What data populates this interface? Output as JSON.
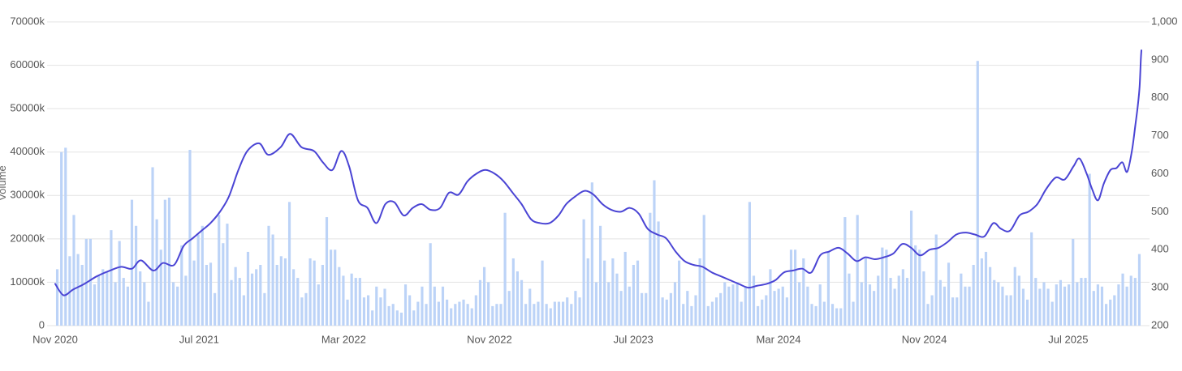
{
  "chart_data": {
    "type": "bar+line",
    "title": "",
    "y_left": {
      "label": "Volume",
      "range": [
        0,
        70000
      ],
      "ticks": [
        0,
        10000,
        20000,
        30000,
        40000,
        50000,
        60000,
        70000
      ],
      "tick_labels": [
        "0",
        "10000k",
        "20000k",
        "30000k",
        "40000k",
        "50000k",
        "60000k",
        "70000k"
      ]
    },
    "y_right": {
      "label": "",
      "range": [
        200,
        1000
      ],
      "ticks": [
        200,
        300,
        400,
        500,
        600,
        700,
        800,
        900,
        1000
      ],
      "tick_labels": [
        "200",
        "300",
        "400",
        "500",
        "600",
        "700",
        "800",
        "900",
        "1,000"
      ]
    },
    "x_axis": {
      "start": "2020-11-01",
      "end": "2025-11-01",
      "tick_labels": [
        "Nov 2020",
        "Jul 2021",
        "Mar 2022",
        "Nov 2022",
        "Jul 2023",
        "Mar 2024",
        "Nov 2024",
        "Jul 2025"
      ]
    },
    "grid": true,
    "colors": {
      "bar": "#bcd3f7",
      "line": "#4a44d4"
    },
    "series": [
      {
        "type": "bar",
        "axis": "left",
        "values": [
          13000,
          40000,
          41000,
          16000,
          25500,
          16500,
          14000,
          20000,
          20000,
          9500,
          11500,
          13000,
          12500,
          22000,
          10000,
          19500,
          11000,
          9000,
          29000,
          23000,
          12500,
          10000,
          5500,
          36500,
          24500,
          17500,
          29000,
          29500,
          10000,
          9000,
          18500,
          11500,
          40500,
          15000,
          21000,
          23000,
          14000,
          14500,
          7500,
          25500,
          19000,
          23500,
          10500,
          13500,
          11000,
          7000,
          17000,
          12000,
          13000,
          14000,
          7500,
          23000,
          21000,
          14000,
          16000,
          15500,
          28500,
          13000,
          11000,
          6500,
          7500,
          15500,
          15000,
          9500,
          14000,
          25000,
          17500,
          17500,
          13500,
          11500,
          6000,
          12000,
          11000,
          11000,
          6500,
          7000,
          3500,
          9000,
          6500,
          8500,
          4500,
          5000,
          3500,
          3000,
          9500,
          7000,
          3500,
          5500,
          9000,
          5000,
          19000,
          9000,
          5500,
          9000,
          6000,
          4000,
          5000,
          5500,
          6000,
          5000,
          4000,
          7000,
          10500,
          13500,
          10000,
          4500,
          5000,
          5000,
          26000,
          8000,
          15500,
          12500,
          10500,
          5000,
          8500,
          5000,
          5500,
          15000,
          5000,
          4000,
          5500,
          5500,
          5500,
          6500,
          5000,
          8000,
          6500,
          24500,
          15500,
          33000,
          10000,
          23000,
          15000,
          10000,
          15500,
          12000,
          8000,
          17000,
          9000,
          14000,
          15000,
          7500,
          7500,
          26000,
          33500,
          24000,
          6500,
          6000,
          7500,
          10000,
          15000,
          5000,
          8000,
          4500,
          7000,
          15500,
          25500,
          4500,
          5500,
          6500,
          7500,
          10000,
          9000,
          9500,
          10000,
          5500,
          9000,
          28500,
          11500,
          4500,
          6000,
          7000,
          13000,
          8000,
          8500,
          9000,
          6500,
          17500,
          17500,
          10000,
          15500,
          9000,
          5000,
          4500,
          9500,
          5500,
          17000,
          5000,
          4000,
          4000,
          25000,
          12000,
          5500,
          25500,
          10000,
          15500,
          9500,
          8000,
          11500,
          18000,
          17500,
          11000,
          8500,
          11500,
          13000,
          11000,
          26500,
          18500,
          17500,
          12500,
          5000,
          7000,
          21000,
          10500,
          9000,
          14500,
          6500,
          6500,
          12000,
          9000,
          9000,
          14000,
          61000,
          15500,
          17000,
          13500,
          10500,
          10000,
          9000,
          7000,
          7000,
          13500,
          11500,
          8500,
          6000,
          21500,
          11000,
          8500,
          10000,
          8500,
          5500,
          9500,
          10500,
          9000,
          9500,
          20000,
          10000,
          11000,
          11000,
          35000,
          8000,
          9500,
          9000,
          5000,
          6000,
          7000,
          9500,
          12000,
          9000,
          11500,
          11000,
          16500
        ]
      },
      {
        "type": "line",
        "axis": "right",
        "points": [
          [
            "2020-11-01",
            310
          ],
          [
            "2020-11-15",
            280
          ],
          [
            "2020-12-01",
            295
          ],
          [
            "2020-12-20",
            310
          ],
          [
            "2021-01-10",
            330
          ],
          [
            "2021-02-01",
            345
          ],
          [
            "2021-02-20",
            355
          ],
          [
            "2021-03-10",
            350
          ],
          [
            "2021-03-25",
            372
          ],
          [
            "2021-04-15",
            345
          ],
          [
            "2021-05-01",
            365
          ],
          [
            "2021-05-20",
            360
          ],
          [
            "2021-06-05",
            410
          ],
          [
            "2021-06-20",
            430
          ],
          [
            "2021-07-05",
            450
          ],
          [
            "2021-07-20",
            470
          ],
          [
            "2021-08-05",
            500
          ],
          [
            "2021-08-20",
            540
          ],
          [
            "2021-09-05",
            610
          ],
          [
            "2021-09-20",
            660
          ],
          [
            "2021-10-10",
            680
          ],
          [
            "2021-10-25",
            650
          ],
          [
            "2021-11-15",
            670
          ],
          [
            "2021-12-01",
            705
          ],
          [
            "2021-12-20",
            670
          ],
          [
            "2022-01-10",
            660
          ],
          [
            "2022-01-25",
            630
          ],
          [
            "2022-02-10",
            610
          ],
          [
            "2022-02-25",
            660
          ],
          [
            "2022-03-10",
            620
          ],
          [
            "2022-03-25",
            530
          ],
          [
            "2022-04-10",
            510
          ],
          [
            "2022-04-25",
            470
          ],
          [
            "2022-05-10",
            520
          ],
          [
            "2022-05-25",
            525
          ],
          [
            "2022-06-10",
            490
          ],
          [
            "2022-06-25",
            510
          ],
          [
            "2022-07-10",
            520
          ],
          [
            "2022-07-25",
            505
          ],
          [
            "2022-08-10",
            510
          ],
          [
            "2022-08-25",
            550
          ],
          [
            "2022-09-10",
            545
          ],
          [
            "2022-09-25",
            580
          ],
          [
            "2022-10-10",
            600
          ],
          [
            "2022-10-25",
            610
          ],
          [
            "2022-11-10",
            600
          ],
          [
            "2022-11-25",
            580
          ],
          [
            "2022-12-10",
            550
          ],
          [
            "2022-12-25",
            520
          ],
          [
            "2023-01-10",
            480
          ],
          [
            "2023-01-25",
            470
          ],
          [
            "2023-02-10",
            470
          ],
          [
            "2023-02-25",
            490
          ],
          [
            "2023-03-10",
            520
          ],
          [
            "2023-03-25",
            540
          ],
          [
            "2023-04-10",
            555
          ],
          [
            "2023-04-25",
            545
          ],
          [
            "2023-05-10",
            520
          ],
          [
            "2023-05-25",
            505
          ],
          [
            "2023-06-10",
            500
          ],
          [
            "2023-06-25",
            510
          ],
          [
            "2023-07-10",
            495
          ],
          [
            "2023-07-25",
            455
          ],
          [
            "2023-08-10",
            440
          ],
          [
            "2023-08-25",
            430
          ],
          [
            "2023-09-10",
            395
          ],
          [
            "2023-09-25",
            370
          ],
          [
            "2023-10-10",
            360
          ],
          [
            "2023-10-25",
            355
          ],
          [
            "2023-11-10",
            340
          ],
          [
            "2023-11-25",
            330
          ],
          [
            "2023-12-10",
            320
          ],
          [
            "2023-12-25",
            310
          ],
          [
            "2024-01-10",
            300
          ],
          [
            "2024-01-25",
            305
          ],
          [
            "2024-02-10",
            310
          ],
          [
            "2024-02-25",
            320
          ],
          [
            "2024-03-10",
            340
          ],
          [
            "2024-03-25",
            345
          ],
          [
            "2024-04-10",
            350
          ],
          [
            "2024-04-25",
            340
          ],
          [
            "2024-05-10",
            385
          ],
          [
            "2024-05-25",
            395
          ],
          [
            "2024-06-10",
            405
          ],
          [
            "2024-06-25",
            390
          ],
          [
            "2024-07-10",
            370
          ],
          [
            "2024-07-25",
            380
          ],
          [
            "2024-08-10",
            375
          ],
          [
            "2024-08-25",
            380
          ],
          [
            "2024-09-10",
            390
          ],
          [
            "2024-09-25",
            415
          ],
          [
            "2024-10-10",
            405
          ],
          [
            "2024-10-25",
            385
          ],
          [
            "2024-11-10",
            400
          ],
          [
            "2024-11-25",
            405
          ],
          [
            "2024-12-10",
            420
          ],
          [
            "2024-12-25",
            440
          ],
          [
            "2025-01-10",
            445
          ],
          [
            "2025-01-25",
            440
          ],
          [
            "2025-02-10",
            435
          ],
          [
            "2025-02-25",
            470
          ],
          [
            "2025-03-10",
            455
          ],
          [
            "2025-03-25",
            450
          ],
          [
            "2025-04-10",
            490
          ],
          [
            "2025-04-25",
            500
          ],
          [
            "2025-05-10",
            520
          ],
          [
            "2025-05-25",
            560
          ],
          [
            "2025-06-10",
            590
          ],
          [
            "2025-06-25",
            585
          ],
          [
            "2025-07-10",
            620
          ],
          [
            "2025-07-20",
            640
          ],
          [
            "2025-08-01",
            600
          ],
          [
            "2025-08-10",
            560
          ],
          [
            "2025-08-20",
            530
          ],
          [
            "2025-08-30",
            575
          ],
          [
            "2025-09-10",
            610
          ],
          [
            "2025-09-20",
            615
          ],
          [
            "2025-09-30",
            630
          ],
          [
            "2025-10-08",
            605
          ],
          [
            "2025-10-16",
            660
          ],
          [
            "2025-10-22",
            730
          ],
          [
            "2025-10-26",
            780
          ],
          [
            "2025-10-29",
            830
          ],
          [
            "2025-10-31",
            900
          ],
          [
            "2025-11-01",
            925
          ]
        ]
      }
    ]
  }
}
